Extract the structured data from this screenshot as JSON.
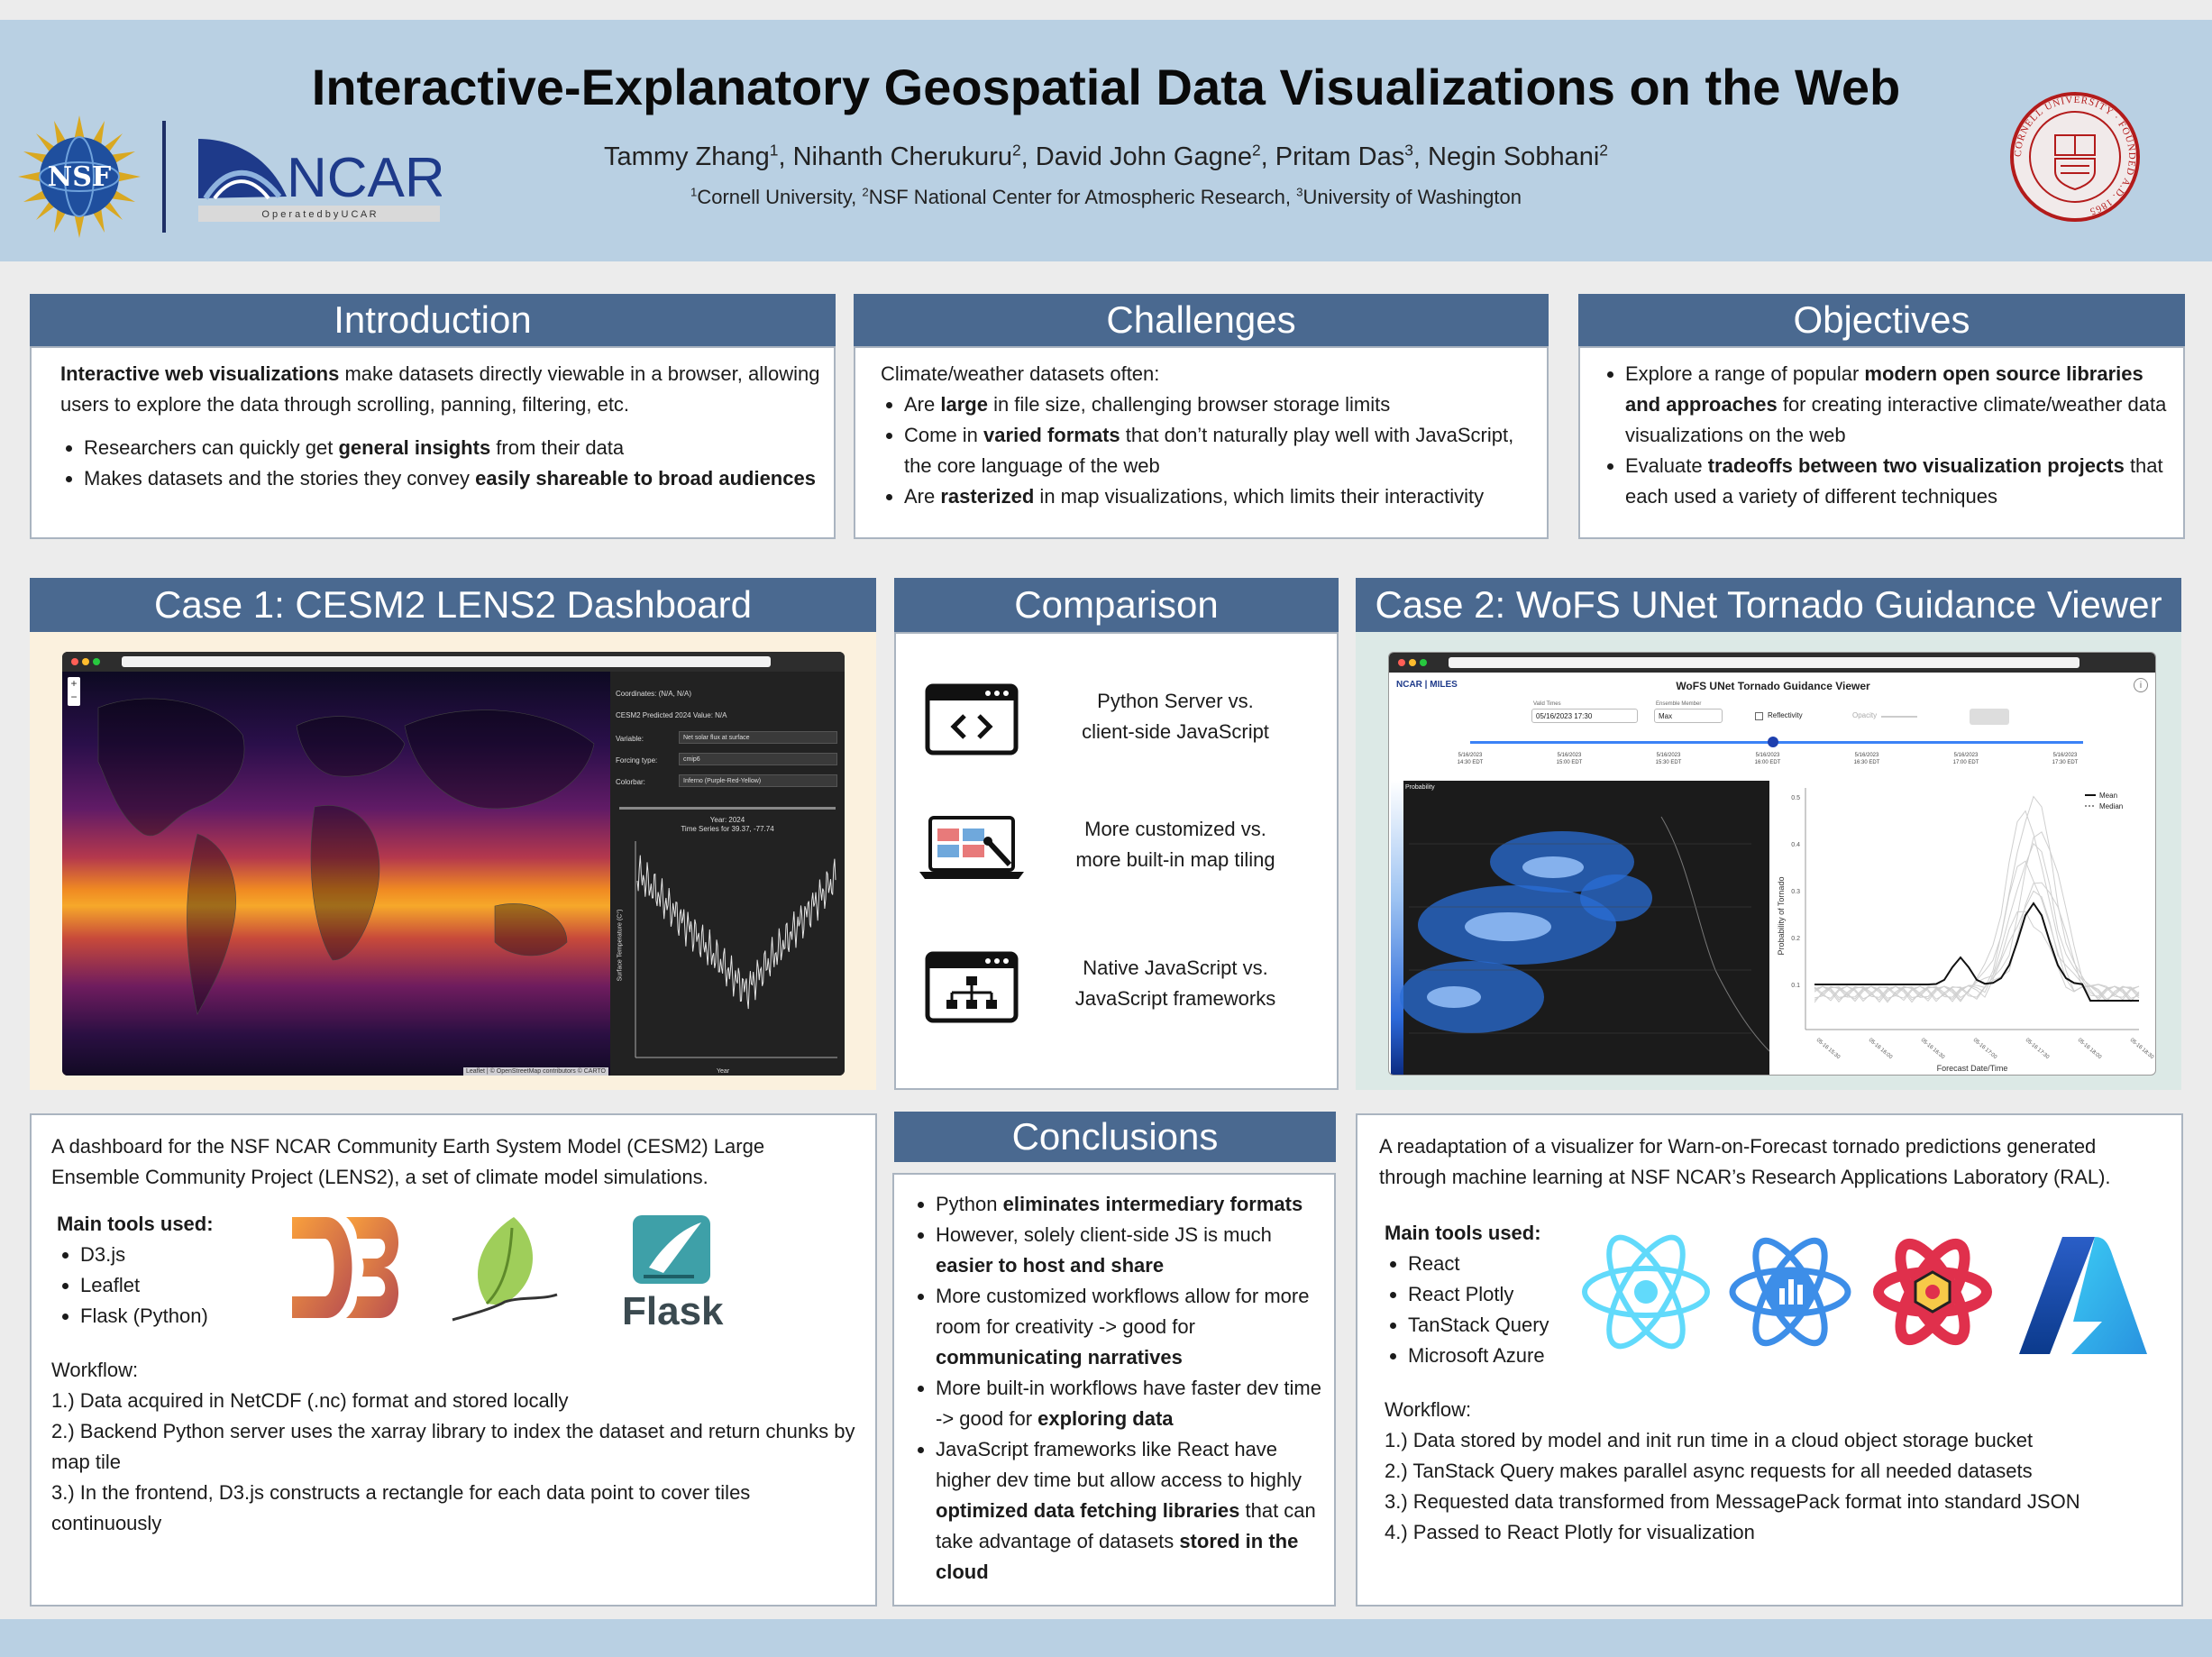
{
  "header": {
    "title": "Interactive-Explanatory Geospatial Data Visualizations on the Web",
    "authors": [
      {
        "name": "Tammy Zhang",
        "sup": "1",
        "sep": ", "
      },
      {
        "name": "Nihanth Cherukuru",
        "sup": "2",
        "sep": ", "
      },
      {
        "name": "David John Gagne",
        "sup": "2",
        "sep": ", "
      },
      {
        "name": "Pritam Das",
        "sup": "3",
        "sep": ", "
      },
      {
        "name": "Negin Sobhani",
        "sup": "2",
        "sep": ""
      }
    ],
    "affiliations": [
      {
        "sup": "1",
        "name": "Cornell University",
        "sep": ", "
      },
      {
        "sup": "2",
        "name": "NSF National Center for Atmospheric Research",
        "sep": ", "
      },
      {
        "sup": "3",
        "name": "University of Washington",
        "sep": ""
      }
    ],
    "logos": {
      "nsf": "NSF",
      "ncar": "NCAR",
      "ncar_sub": "O p e r a t e d   b y   U C A R",
      "cornell_ring": "CORNELL UNIVERSITY · FOUNDED A.D. 1865"
    }
  },
  "introduction": {
    "heading": "Introduction",
    "lead_bold": "Interactive web visualizations",
    "lead_rest": " make datasets directly viewable in a browser, allowing users to explore the data through scrolling, panning, filtering, etc.",
    "b1_pre": "Researchers can quickly get ",
    "b1_bold": "general insights",
    "b1_post": " from their data",
    "b2_pre": "Makes datasets and the stories they convey ",
    "b2_bold": "easily shareable to broad audiences"
  },
  "challenges": {
    "heading": "Challenges",
    "lead": "Climate/weather datasets often:",
    "b1_pre": "Are ",
    "b1_bold": "large",
    "b1_post": " in file size, challenging browser storage limits",
    "b2_pre": "Come in ",
    "b2_bold": "varied formats",
    "b2_post": " that don’t naturally play well with JavaScript, the core language of the web",
    "b3_pre": "Are ",
    "b3_bold": "rasterized",
    "b3_post": " in map visualizations, which limits their interactivity"
  },
  "objectives": {
    "heading": "Objectives",
    "b1_pre": "Explore a range of popular ",
    "b1_bold": "modern open source libraries and approaches",
    "b1_post": " for creating interactive climate/weather data visualizations on the web",
    "b2_pre": "Evaluate ",
    "b2_bold": "tradeoffs between two visualization projects",
    "b2_post": " that each used a variety of different techniques"
  },
  "case1": {
    "heading": "Case 1: CESM2 LENS2 Dashboard",
    "screenshot": {
      "coordinates": "Coordinates: (N/A, N/A)",
      "predicted": "CESM2 Predicted 2024 Value: N/A",
      "variable_label": "Variable:",
      "variable_value": "Net solar flux at surface",
      "forcing_label": "Forcing type:",
      "forcing_value": "cmip6",
      "colorbar_label": "Colorbar:",
      "colorbar_value": "Inferno (Purple-Red-Yellow)",
      "year": "Year: 2024",
      "ts_title": "Time Series for 39.37, -77.74",
      "ylabel": "Surface Temperature (C°)",
      "xlabel": "Year",
      "attribution": "Leaflet | © OpenStreetMap contributors © CARTO"
    },
    "description": "A dashboard for the NSF NCAR Community Earth System Model (CESM2) Large Ensemble Community Project (LENS2), a set of climate model simulations.",
    "tools_heading": "Main tools used:",
    "tools": [
      "D3.js",
      "Leaflet",
      "Flask (Python)"
    ],
    "flask_label": "Flask",
    "workflow_heading": "Workflow:",
    "workflow": [
      "1.) Data acquired in NetCDF (.nc) format and stored locally",
      "2.) Backend Python server uses the xarray library to index the dataset and return chunks by map tile",
      "3.) In the frontend, D3.js constructs a rectangle for each data point to cover tiles continuously"
    ]
  },
  "comparison": {
    "heading": "Comparison",
    "items": [
      {
        "icon": "code-window-icon",
        "line1": "Python Server vs.",
        "line2": "client-side JavaScript"
      },
      {
        "icon": "laptop-design-icon",
        "line1": "More customized vs.",
        "line2": "more built-in map tiling"
      },
      {
        "icon": "sitemap-window-icon",
        "line1": "Native JavaScript vs.",
        "line2": "JavaScript frameworks"
      }
    ]
  },
  "conclusions": {
    "heading": "Conclusions",
    "b1_pre": "Python ",
    "b1_bold": "eliminates intermediary formats",
    "b2_pre": "However, solely client-side JS is much ",
    "b2_bold": "easier to host and share",
    "b3_pre": "More customized workflows allow for more room for creativity -> good for ",
    "b3_bold": "communicating narratives",
    "b4_pre": "More built-in workflows have faster dev time -> good for ",
    "b4_bold": "exploring data",
    "b5_pre": "JavaScript frameworks like React have higher dev time but allow access to highly ",
    "b5_bold": "optimized data fetching libraries",
    "b5_mid": " that can take advantage of datasets ",
    "b5_bold2": "stored in the cloud"
  },
  "case2": {
    "heading": "Case 2: WoFS UNet Tornado Guidance Viewer",
    "screenshot": {
      "brand": "NCAR | MILES",
      "app_title": "WoFS UNet Tornado Guidance Viewer",
      "valid_times_label": "Valid Times",
      "valid_times_value": "05/16/2023 17:30",
      "ensemble_label": "Ensemble Member",
      "ensemble_value": "Max",
      "reflectivity": "Reflectivity",
      "opacity": "Opacity",
      "timeline": [
        {
          "d": "5/16/2023",
          "t": "14:30 EDT"
        },
        {
          "d": "5/16/2023",
          "t": "15:00 EDT"
        },
        {
          "d": "5/16/2023",
          "t": "15:30 EDT"
        },
        {
          "d": "5/16/2023",
          "t": "16:00 EDT"
        },
        {
          "d": "5/16/2023",
          "t": "16:30 EDT"
        },
        {
          "d": "5/16/2023",
          "t": "17:00 EDT"
        },
        {
          "d": "5/16/2023",
          "t": "17:30 EDT"
        }
      ],
      "prob_label": "Probability",
      "legend_mean": "Mean",
      "legend_median": "Median",
      "ylabel": "Probability of Tornado",
      "xlabel": "Forecast Date/Time",
      "yticks": [
        "0.5",
        "0.4",
        "0.3",
        "0.2",
        "0.1"
      ],
      "xticks": [
        "05-16 15:30",
        "05-16 16:00",
        "05-16 16:30",
        "05-16 17:00",
        "05-16 17:30",
        "05-16 18:00",
        "05-16 18:30"
      ]
    },
    "description": "A readaptation of a visualizer for Warn-on-Forecast tornado predictions generated through machine learning at NSF NCAR’s Research Applications Laboratory (RAL).",
    "tools_heading": "Main tools used:",
    "tools": [
      "React",
      "React Plotly",
      "TanStack Query",
      "Microsoft Azure"
    ],
    "workflow_heading": "Workflow:",
    "workflow": [
      "1.) Data stored by model and init run time in a cloud object storage bucket",
      "2.) TanStack Query makes parallel async requests for all needed datasets",
      "3.) Requested data transformed from MessagePack format into standard JSON",
      "4.) Passed to React Plotly for visualization"
    ]
  },
  "colors": {
    "header_band": "#b9d0e3",
    "section_header": "#4a6990",
    "page_bg": "#ececec"
  }
}
